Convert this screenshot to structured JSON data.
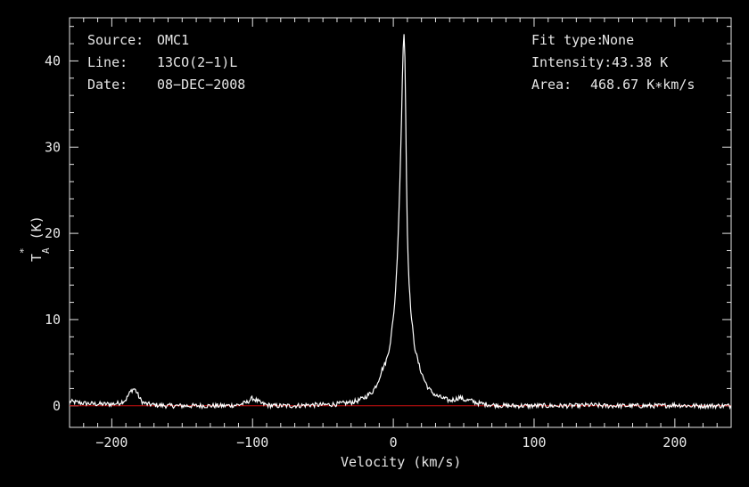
{
  "chart_data": {
    "type": "line",
    "xlabel": "Velocity (km/s)",
    "ylabel": "T_A^* (K)",
    "ylabel_parts": {
      "main": "T",
      "sub": "A",
      "sup": "*",
      "unit": "(K)"
    },
    "xlim": [
      -230,
      240
    ],
    "ylim": [
      -2.5,
      45
    ],
    "xticks": [
      -200,
      -100,
      0,
      100,
      200
    ],
    "yticks": [
      0,
      10,
      20,
      30,
      40
    ],
    "xtick_labels": [
      "−200",
      "−100",
      "0",
      "100",
      "200"
    ],
    "ytick_labels": [
      "0",
      "10",
      "20",
      "30",
      "40"
    ],
    "baseline": 0,
    "baseline_color": "#d01010",
    "series_color": "#ffffff",
    "series": [
      {
        "x": [
          -230,
          -220,
          -210,
          -200,
          -195,
          -190,
          -188,
          -186,
          -184,
          -182,
          -180,
          -178,
          -175,
          -170,
          -160,
          -150,
          -140,
          -130,
          -120,
          -110,
          -104,
          -100,
          -97,
          -94,
          -90,
          -85,
          -80,
          -70,
          -60,
          -50,
          -40,
          -30,
          -25,
          -20,
          -15,
          -12,
          -10,
          -8,
          -6,
          -4,
          -2,
          0,
          1,
          2,
          3,
          4,
          5,
          6,
          6.5,
          7,
          7.5,
          8,
          8.5,
          9,
          9.5,
          10,
          11,
          12,
          13,
          14,
          15,
          17,
          19,
          22,
          25,
          30,
          35,
          40,
          45,
          47,
          50,
          55,
          60,
          65,
          70,
          80,
          90,
          100,
          110,
          120,
          130,
          140,
          150,
          160,
          170,
          180,
          190,
          200,
          210,
          220,
          230,
          240
        ],
        "y": [
          0.5,
          0.3,
          0.2,
          0.2,
          0.3,
          0.7,
          1.3,
          1.8,
          2.0,
          1.5,
          0.8,
          0.4,
          0.2,
          0.1,
          0.0,
          0.0,
          0.0,
          0.0,
          0.0,
          0.1,
          0.4,
          0.9,
          0.6,
          0.3,
          0.1,
          0.0,
          0.0,
          0.0,
          0.1,
          0.1,
          0.2,
          0.4,
          0.6,
          1.0,
          1.6,
          2.4,
          3.2,
          4.2,
          4.8,
          5.8,
          7.5,
          10.2,
          12.0,
          14.5,
          18.0,
          22.5,
          28.0,
          34.5,
          38.5,
          41.5,
          43.38,
          42.0,
          38.0,
          31.0,
          25.0,
          20.0,
          15.0,
          12.0,
          10.0,
          8.5,
          7.0,
          5.5,
          4.3,
          3.0,
          2.0,
          1.2,
          0.9,
          0.6,
          0.8,
          1.0,
          0.7,
          0.6,
          0.3,
          0.2,
          0.1,
          0.0,
          0.0,
          0.0,
          0.0,
          0.0,
          0.0,
          0.1,
          0.0,
          0.0,
          0.0,
          0.0,
          0.0,
          0.1,
          0.0,
          0.0,
          0.0,
          0.0
        ]
      }
    ]
  },
  "info_left": [
    {
      "label": "Source:",
      "value": "OMC1"
    },
    {
      "label": "Line:",
      "value": "13CO(2−1)L"
    },
    {
      "label": "Date:",
      "value": "08−DEC−2008"
    }
  ],
  "info_right": [
    {
      "label": "Fit type:",
      "value": "None"
    },
    {
      "label": "Intensity:",
      "value": "43.38 K"
    },
    {
      "label": "Area:",
      "value": "468.67 K∗km/s"
    }
  ]
}
